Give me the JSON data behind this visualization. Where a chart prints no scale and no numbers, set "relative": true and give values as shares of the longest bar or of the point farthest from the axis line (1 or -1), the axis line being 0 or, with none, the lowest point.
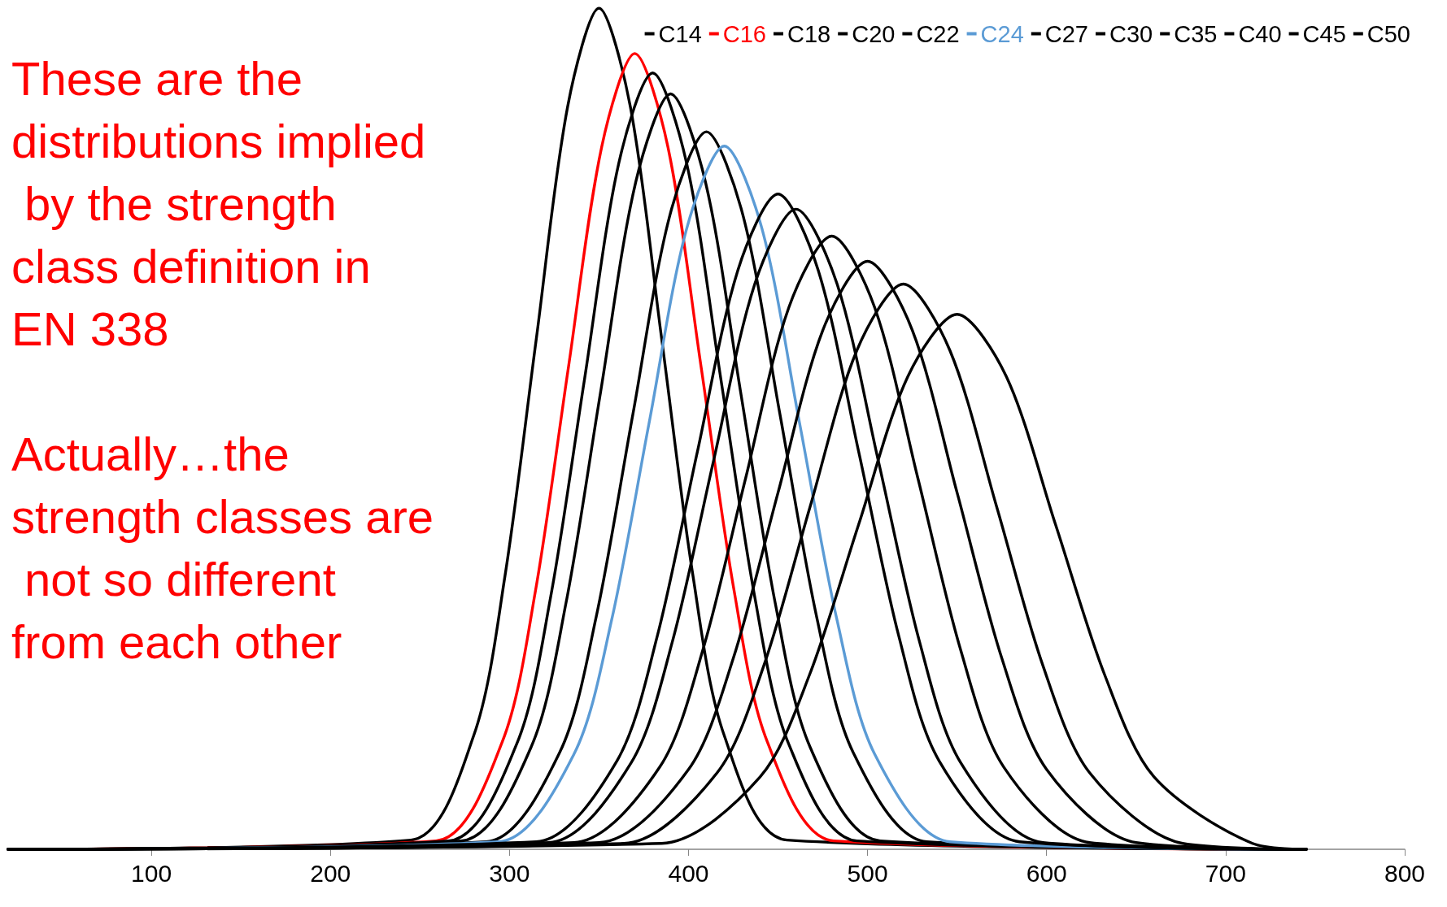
{
  "chart_data": {
    "type": "line",
    "relative": true,
    "legend": "top right",
    "marker": "none",
    "grid": false,
    "xlim": [
      20,
      800
    ],
    "xticks": [
      100,
      200,
      300,
      400,
      500,
      600,
      700,
      800
    ],
    "annotations": [
      "These are the distributions implied by the strength class definition in EN 338",
      "Actually…the strength classes are not so different from each other"
    ],
    "series": [
      {
        "name": "C14",
        "color": "#000000",
        "x": [
          20,
          245,
          280,
          297.5,
          315,
          332.5,
          350,
          367.5,
          385,
          402.5,
          420,
          455,
          745
        ],
        "values": [
          0,
          0.011,
          0.135,
          0.325,
          0.607,
          0.883,
          1,
          0.883,
          0.607,
          0.325,
          0.135,
          0.011,
          0
        ]
      },
      {
        "name": "C16",
        "color": "#ff0000",
        "x": [
          20,
          259,
          296,
          314.5,
          333,
          351.5,
          370,
          388.5,
          407,
          425.5,
          444,
          481,
          745
        ],
        "values": [
          0,
          0.01,
          0.128,
          0.307,
          0.574,
          0.835,
          0.946,
          0.835,
          0.574,
          0.307,
          0.128,
          0.01,
          0
        ]
      },
      {
        "name": "C18",
        "color": "#000000",
        "x": [
          20,
          266,
          304,
          323,
          342,
          361,
          380,
          399,
          418,
          437,
          456,
          494,
          745
        ],
        "values": [
          0,
          0.01,
          0.125,
          0.3,
          0.56,
          0.815,
          0.923,
          0.815,
          0.56,
          0.3,
          0.125,
          0.01,
          0
        ]
      },
      {
        "name": "C20",
        "color": "#000000",
        "x": [
          20,
          273,
          312,
          331.5,
          351,
          370.5,
          390,
          409.5,
          429,
          448.5,
          468,
          507,
          745
        ],
        "values": [
          0,
          0.01,
          0.121,
          0.292,
          0.545,
          0.793,
          0.898,
          0.793,
          0.545,
          0.292,
          0.121,
          0.01,
          0
        ]
      },
      {
        "name": "C22",
        "color": "#000000",
        "x": [
          20,
          287,
          328,
          348.5,
          369,
          389.5,
          410,
          430.5,
          451,
          471.5,
          492,
          533,
          745
        ],
        "values": [
          0,
          0.009,
          0.115,
          0.277,
          0.518,
          0.753,
          0.853,
          0.753,
          0.518,
          0.277,
          0.115,
          0.009,
          0
        ]
      },
      {
        "name": "C24",
        "color": "#5b9bd5",
        "x": [
          20,
          294,
          336,
          357,
          378,
          399,
          420,
          441,
          462,
          483,
          504,
          546,
          745
        ],
        "values": [
          0,
          0.009,
          0.113,
          0.272,
          0.507,
          0.738,
          0.836,
          0.738,
          0.507,
          0.272,
          0.113,
          0.009,
          0
        ]
      },
      {
        "name": "C27",
        "color": "#000000",
        "x": [
          20,
          315,
          360,
          382.5,
          405,
          427.5,
          450,
          472.5,
          495,
          517.5,
          540,
          585,
          745
        ],
        "values": [
          0,
          0.009,
          0.105,
          0.253,
          0.473,
          0.688,
          0.779,
          0.688,
          0.473,
          0.253,
          0.105,
          0.009,
          0
        ]
      },
      {
        "name": "C30",
        "color": "#000000",
        "x": [
          20,
          322,
          368,
          391,
          414,
          437,
          460,
          483,
          506,
          529,
          552,
          598,
          745
        ],
        "values": [
          0,
          0.008,
          0.103,
          0.247,
          0.462,
          0.672,
          0.761,
          0.672,
          0.462,
          0.247,
          0.103,
          0.008,
          0
        ]
      },
      {
        "name": "C35",
        "color": "#000000",
        "x": [
          20,
          336,
          384,
          408,
          432,
          456,
          480,
          504,
          528,
          552,
          576,
          624,
          745
        ],
        "values": [
          0,
          0.008,
          0.098,
          0.237,
          0.442,
          0.644,
          0.729,
          0.644,
          0.442,
          0.237,
          0.098,
          0.008,
          0
        ]
      },
      {
        "name": "C40",
        "color": "#000000",
        "x": [
          20,
          350,
          400,
          425,
          450,
          475,
          500,
          525,
          550,
          575,
          600,
          650,
          745
        ],
        "values": [
          0,
          0.008,
          0.095,
          0.227,
          0.424,
          0.617,
          0.699,
          0.617,
          0.424,
          0.227,
          0.095,
          0.008,
          0
        ]
      },
      {
        "name": "C45",
        "color": "#000000",
        "x": [
          20,
          364,
          416,
          442,
          468,
          494,
          520,
          546,
          572,
          598,
          624,
          676,
          745
        ],
        "values": [
          0,
          0.007,
          0.091,
          0.218,
          0.408,
          0.593,
          0.672,
          0.593,
          0.408,
          0.218,
          0.091,
          0.007,
          0
        ]
      },
      {
        "name": "C50",
        "color": "#000000",
        "x": [
          20,
          385,
          440,
          467.5,
          495,
          522.5,
          550,
          577.5,
          605,
          632.5,
          660,
          715,
          745
        ],
        "values": [
          0,
          0.007,
          0.086,
          0.207,
          0.386,
          0.562,
          0.636,
          0.562,
          0.386,
          0.207,
          0.086,
          0.007,
          0
        ]
      }
    ]
  }
}
